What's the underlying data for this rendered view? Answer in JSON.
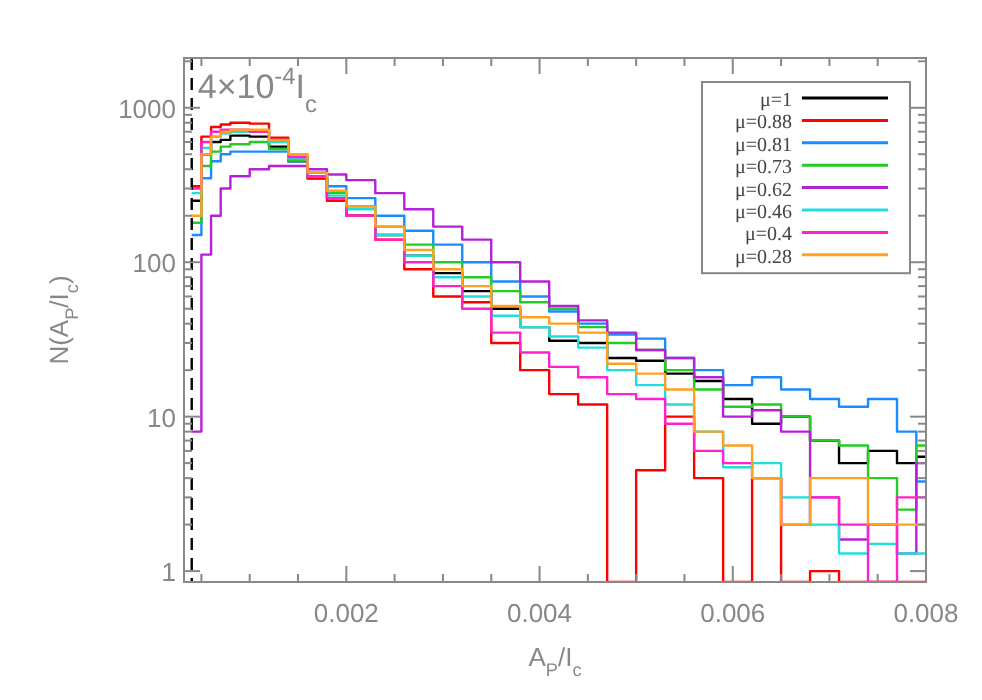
{
  "chart_data": {
    "type": "histogram",
    "xlabel": "A$_{P}$/I$_{c}$",
    "ylabel": "N(A$_{P}$/I$_{c}$)",
    "log": "y",
    "grid": false,
    "legend": "top right",
    "line_style": "solid",
    "marker": "none",
    "bins": [
      0.0004,
      0.0005,
      0.0006,
      0.0007,
      0.0008,
      0.001,
      0.0012,
      0.0014,
      0.0016,
      0.0018,
      0.002,
      0.0023,
      0.0026,
      0.0029,
      0.0032,
      0.0035,
      0.0038,
      0.0041,
      0.0044,
      0.0047,
      0.005,
      0.0053,
      0.0056,
      0.0059,
      0.0062,
      0.0065,
      0.0068,
      0.0071,
      0.0074,
      0.0077,
      0.0079,
      0.008
    ],
    "xlim": [
      0.00032,
      0.008
    ],
    "xticks": [
      {
        "value": 0.0005,
        "label": null
      },
      {
        "value": 0.001,
        "label": null
      },
      {
        "value": 0.0015,
        "label": null
      },
      0.002,
      {
        "value": 0.0025,
        "label": null
      },
      {
        "value": 0.003,
        "label": null
      },
      {
        "value": 0.0035,
        "label": null
      },
      0.004,
      {
        "value": 0.0045,
        "label": null
      },
      {
        "value": 0.005,
        "label": null
      },
      {
        "value": 0.0055,
        "label": null
      },
      0.006,
      {
        "value": 0.0065,
        "label": null
      },
      {
        "value": 0.007,
        "label": null
      },
      {
        "value": 0.0075,
        "label": null
      },
      0.008
    ],
    "ylim": [
      0.85,
      2100
    ],
    "yticks": [
      1,
      {
        "value": 2,
        "label": null
      },
      {
        "value": 3,
        "label": null
      },
      {
        "value": 4,
        "label": null
      },
      {
        "value": 5,
        "label": null
      },
      {
        "value": 6,
        "label": null
      },
      {
        "value": 7,
        "label": null
      },
      {
        "value": 8,
        "label": null
      },
      {
        "value": 9,
        "label": null
      },
      10,
      {
        "value": 20,
        "label": null
      },
      {
        "value": 30,
        "label": null
      },
      {
        "value": 40,
        "label": null
      },
      {
        "value": 50,
        "label": null
      },
      {
        "value": 60,
        "label": null
      },
      {
        "value": 70,
        "label": null
      },
      {
        "value": 80,
        "label": null
      },
      {
        "value": 90,
        "label": null
      },
      100,
      {
        "value": 200,
        "label": null
      },
      {
        "value": 300,
        "label": null
      },
      {
        "value": 400,
        "label": null
      },
      {
        "value": 500,
        "label": null
      },
      {
        "value": 600,
        "label": null
      },
      {
        "value": 700,
        "label": null
      },
      {
        "value": 800,
        "label": null
      },
      {
        "value": 900,
        "label": null
      },
      1000,
      {
        "value": 2000,
        "label": null
      }
    ],
    "ref_lines": [
      {
        "axis": "x",
        "value": 0.0004,
        "label": "4×10$^{-4}$I$_{c}$",
        "line_style": "dashed",
        "color": "#000000"
      }
    ],
    "series": [
      {
        "name": "μ=1",
        "color": "#000000",
        "values": [
          250,
          500,
          600,
          620,
          660,
          650,
          560,
          450,
          350,
          260,
          200,
          150,
          110,
          85,
          65,
          50,
          38,
          31,
          30,
          24,
          23,
          19,
          17,
          13,
          9,
          10,
          7,
          5,
          6,
          5,
          5.5
        ]
      },
      {
        "name": "μ=0.88",
        "color": "#ff0000",
        "values": [
          310,
          650,
          750,
          780,
          800,
          790,
          640,
          480,
          350,
          250,
          200,
          140,
          90,
          60,
          55,
          30,
          20,
          14,
          12,
          null,
          4.5,
          10,
          4,
          null,
          4,
          null,
          1,
          null,
          null,
          null,
          null
        ]
      },
      {
        "name": "μ=0.81",
        "color": "#1a8cff",
        "values": [
          150,
          350,
          450,
          500,
          520,
          520,
          520,
          450,
          380,
          310,
          260,
          200,
          160,
          130,
          100,
          75,
          60,
          48,
          40,
          34,
          32,
          24,
          20,
          16,
          18,
          15,
          13,
          11.6,
          13,
          8,
          3.8
        ]
      },
      {
        "name": "μ=0.73",
        "color": "#22cc22",
        "values": [
          180,
          420,
          520,
          560,
          580,
          600,
          540,
          460,
          360,
          280,
          230,
          170,
          130,
          100,
          80,
          65,
          55,
          50,
          38,
          30,
          27,
          20,
          15,
          11.6,
          12,
          10,
          7,
          6.5,
          4,
          2.5,
          6.5
        ]
      },
      {
        "name": "μ=0.62",
        "color": "#b522d6",
        "values": [
          8,
          112,
          200,
          300,
          360,
          400,
          420,
          420,
          400,
          370,
          340,
          280,
          220,
          170,
          140,
          100,
          75,
          52,
          42,
          35,
          27,
          24,
          18,
          10,
          11,
          8,
          3,
          1.6,
          2,
          1.3,
          5
        ]
      },
      {
        "name": "μ=0.46",
        "color": "#22dddd",
        "values": [
          280,
          550,
          650,
          680,
          700,
          700,
          600,
          470,
          360,
          270,
          220,
          150,
          110,
          80,
          60,
          45,
          38,
          33,
          28,
          20,
          16,
          12,
          8,
          4.7,
          5,
          3,
          2,
          1.3,
          1.5,
          1.3,
          1.3
        ]
      },
      {
        "name": "μ=0.4",
        "color": "#ff22cc",
        "values": [
          300,
          600,
          700,
          720,
          720,
          700,
          620,
          480,
          360,
          260,
          200,
          140,
          100,
          70,
          50,
          35,
          26,
          21,
          18,
          14,
          13,
          9,
          6,
          5,
          4,
          2,
          3,
          2,
          null,
          3,
          3
        ]
      },
      {
        "name": "μ=0.28",
        "color": "#ffa020",
        "values": [
          200,
          500,
          650,
          700,
          720,
          720,
          620,
          500,
          380,
          290,
          230,
          170,
          120,
          90,
          70,
          52,
          44,
          40,
          35,
          22,
          19,
          15,
          8,
          6.5,
          4,
          2,
          4,
          4,
          2,
          2,
          2
        ]
      }
    ]
  }
}
